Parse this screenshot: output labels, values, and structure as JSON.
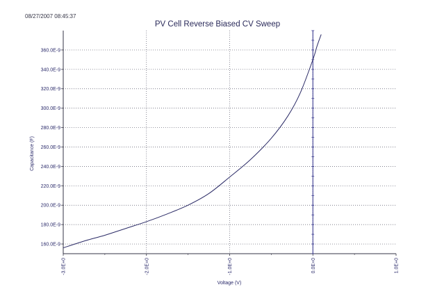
{
  "timestamp": "08/27/2007 08:45:37",
  "chart_data": {
    "type": "line",
    "title": "PV Cell Reverse Biased CV Sweep",
    "xlabel": "Voltage (V)",
    "ylabel": "Capacitance (F)",
    "xlim": [
      -3.0,
      1.0
    ],
    "ylim": [
      150,
      380
    ],
    "x_ticks": [
      -3.0,
      -2.0,
      -1.0,
      0.0,
      1.0
    ],
    "x_tick_labels": [
      "-3.0E+0",
      "-2.0E+0",
      "-1.0E+0",
      "0.0E+0",
      "1.0E+0"
    ],
    "y_ticks": [
      160,
      180,
      200,
      220,
      240,
      260,
      280,
      300,
      320,
      340,
      360
    ],
    "y_tick_labels": [
      "160.0E-9",
      "180.0E-9",
      "200.0E-9",
      "220.0E-9",
      "240.0E-9",
      "260.0E-9",
      "280.0E-9",
      "300.0E-9",
      "320.0E-9",
      "340.0E-9",
      "360.0E-9"
    ],
    "grid": true,
    "series": [
      {
        "color": "#2a2a66",
        "x": [
          -3.0,
          -2.75,
          -2.5,
          -2.25,
          -2.0,
          -1.75,
          -1.5,
          -1.25,
          -1.0,
          -0.75,
          -0.5,
          -0.3,
          -0.15,
          0.0,
          0.05,
          0.1
        ],
        "y": [
          156,
          163,
          169,
          176,
          183,
          191,
          200,
          212,
          229,
          247,
          269,
          292,
          316,
          350,
          364,
          376
        ]
      }
    ]
  }
}
